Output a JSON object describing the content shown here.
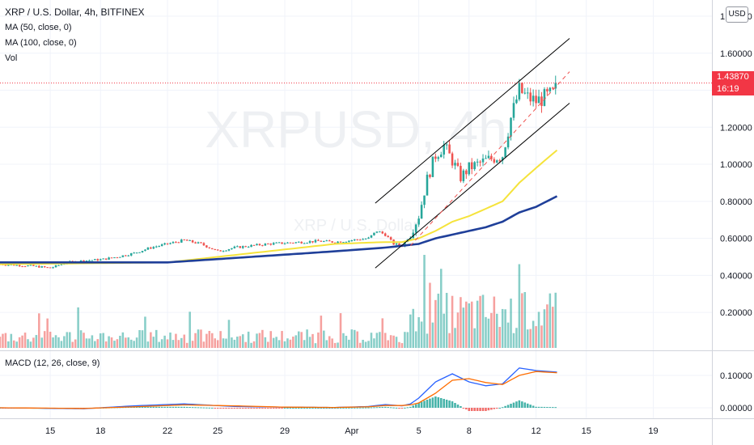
{
  "header": {
    "symbol_line": "XRP / U.S. Dollar, 4h, BITFINEX",
    "ma50": "MA (50, close, 0)",
    "ma100": "MA (100, close, 0)",
    "vol": "Vol",
    "watermark_main": "XRPUSD, 4h",
    "watermark_sub": "XRP / U.S. Dollar",
    "currency_button": "USD"
  },
  "last_price": {
    "value": "1.43870",
    "countdown": "16:19"
  },
  "macd_label": "MACD (12, 26, close, 9)",
  "colors": {
    "up": "#26a69a",
    "down": "#ef5350",
    "ma50": "#f5e33b",
    "ma100": "#1f3f99",
    "macd": "#2962ff",
    "signal": "#ff6d00",
    "price_tag": "#f23645",
    "trendline": "#000000"
  },
  "chart_data": [
    {
      "type": "candlestick",
      "title": "XRP / U.S. Dollar, 4h, BITFINEX",
      "price_axis_labels": [
        "1.80000",
        "1.60000",
        "1.40000",
        "1.20000",
        "1.00000",
        "0.80000",
        "0.60000",
        "0.40000",
        "0.20000"
      ],
      "ylim": [
        0.1,
        1.8
      ],
      "x_tick_labels": [
        "15",
        "18",
        "22",
        "25",
        "29",
        "Apr",
        "5",
        "8",
        "12",
        "15",
        "19"
      ],
      "x_tick_days": [
        -17,
        -14,
        -10,
        -7,
        -3,
        1,
        5,
        8,
        12,
        15,
        19
      ],
      "xlim_days": [
        -20.0,
        22.5
      ],
      "last_price": 1.4387,
      "ohlc_anchor_days": [
        -20,
        -18,
        -17,
        -16,
        -15,
        -14,
        -13,
        -12,
        -11,
        -10,
        -9,
        -8,
        -7,
        -6,
        -5,
        -4,
        -3,
        -2,
        -1,
        0,
        1,
        2,
        2.5,
        3,
        3.5,
        4,
        4.5,
        5,
        5.5,
        6,
        6.5,
        7,
        7.5,
        8,
        9,
        10,
        10.5,
        11,
        11.5,
        12,
        12.5,
        13,
        13.3
      ],
      "close_anchor_values": [
        0.46,
        0.45,
        0.44,
        0.47,
        0.48,
        0.485,
        0.5,
        0.52,
        0.55,
        0.57,
        0.59,
        0.57,
        0.53,
        0.55,
        0.56,
        0.57,
        0.575,
        0.58,
        0.585,
        0.58,
        0.59,
        0.6,
        0.64,
        0.62,
        0.57,
        0.56,
        0.62,
        0.72,
        0.92,
        1.05,
        1.1,
        1.02,
        0.93,
        0.98,
        1.02,
        1.05,
        1.25,
        1.4,
        1.36,
        1.34,
        1.36,
        1.38,
        1.4387
      ],
      "series": [
        {
          "name": "MA (50, close, 0)",
          "x_days": [
            -20,
            -10,
            -5,
            0,
            3,
            4,
            5,
            6,
            7,
            8,
            9,
            10,
            11,
            12,
            13.3
          ],
          "values": [
            0.46,
            0.47,
            0.52,
            0.57,
            0.58,
            0.58,
            0.6,
            0.64,
            0.69,
            0.72,
            0.76,
            0.8,
            0.9,
            0.98,
            1.08
          ]
        },
        {
          "name": "MA (100, close, 0)",
          "x_days": [
            -20,
            -10,
            -5,
            0,
            3,
            5,
            6,
            7,
            8,
            9,
            10,
            11,
            12,
            13.3
          ],
          "values": [
            0.47,
            0.47,
            0.5,
            0.53,
            0.55,
            0.57,
            0.6,
            0.62,
            0.64,
            0.66,
            0.69,
            0.74,
            0.77,
            0.83
          ]
        }
      ],
      "channel_lines": [
        {
          "from": [
            2.4,
            0.79
          ],
          "to": [
            14.0,
            1.68
          ]
        },
        {
          "from": [
            2.4,
            0.44
          ],
          "to": [
            14.0,
            1.33
          ]
        },
        {
          "from": [
            4.5,
            0.56
          ],
          "to": [
            14.0,
            1.5
          ],
          "style": "dashed"
        }
      ]
    },
    {
      "type": "bar",
      "title": "Vol",
      "volume_spikes": [
        {
          "day": 5.3,
          "height": 1.0
        },
        {
          "day": 5.7,
          "height": 0.7
        },
        {
          "day": 6.3,
          "height": 0.85
        },
        {
          "day": 11.0,
          "height": 0.9
        },
        {
          "day": 11.3,
          "height": 0.6
        }
      ]
    },
    {
      "type": "line",
      "title": "MACD (12, 26, close, 9)",
      "axis_labels": [
        "0.10000",
        "0.00000"
      ],
      "ylim": [
        -0.04,
        0.13
      ],
      "series": [
        {
          "name": "MACD",
          "x_days": [
            -20,
            -15,
            -12,
            -9,
            -6,
            -3,
            0,
            2,
            3,
            4,
            4.5,
            5,
            6,
            7,
            8,
            9,
            10,
            11,
            12,
            13.3
          ],
          "values": [
            0.0,
            -0.003,
            0.006,
            0.012,
            0.004,
            0.002,
            0.001,
            0.004,
            0.01,
            0.006,
            0.012,
            0.03,
            0.08,
            0.105,
            0.08,
            0.068,
            0.074,
            0.123,
            0.115,
            0.11
          ]
        },
        {
          "name": "Signal",
          "x_days": [
            -20,
            -15,
            -12,
            -9,
            -6,
            -3,
            0,
            2,
            3,
            4,
            4.5,
            5,
            6,
            7,
            8,
            9,
            10,
            11,
            12,
            13.3
          ],
          "values": [
            0.0,
            -0.002,
            0.003,
            0.009,
            0.006,
            0.002,
            0.001,
            0.003,
            0.007,
            0.007,
            0.009,
            0.015,
            0.045,
            0.085,
            0.09,
            0.078,
            0.072,
            0.1,
            0.112,
            0.108
          ]
        }
      ]
    }
  ]
}
